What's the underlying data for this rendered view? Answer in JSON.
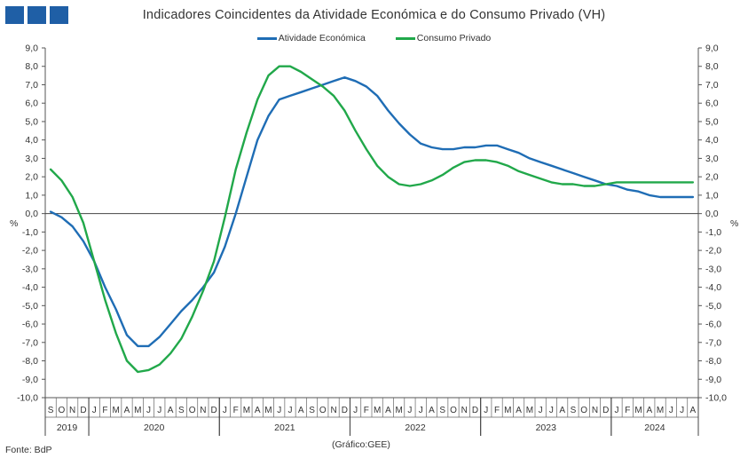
{
  "header": {
    "title": "Indicadores Coincidentes da Atividade Económica e do Consumo Privado (VH)",
    "logo_color": "#1f5fa6"
  },
  "footer": {
    "source": "Fonte: BdP",
    "note": "(Gráfico:GEE)"
  },
  "chart_data": {
    "type": "line",
    "title": "Indicadores Coincidentes da Atividade Económica e do Consumo Privado (VH)",
    "ylabel_left": "%",
    "ylabel_right": "%",
    "ylim": [
      -10,
      9
    ],
    "y_ticks": [
      "9,0",
      "8,0",
      "7,0",
      "6,0",
      "5,0",
      "4,0",
      "3,0",
      "2,0",
      "1,0",
      "0,0",
      "-1,0",
      "-2,0",
      "-3,0",
      "-4,0",
      "-5,0",
      "-6,0",
      "-7,0",
      "-8,0",
      "-9,0",
      "-10,0"
    ],
    "y_tick_values": [
      9,
      8,
      7,
      6,
      5,
      4,
      3,
      2,
      1,
      0,
      -1,
      -2,
      -3,
      -4,
      -5,
      -6,
      -7,
      -8,
      -9,
      -10
    ],
    "grid": false,
    "legend_position": "top-center",
    "month_labels": [
      "S",
      "O",
      "N",
      "D",
      "J",
      "F",
      "M",
      "A",
      "M",
      "J",
      "J",
      "A",
      "S",
      "O",
      "N",
      "D",
      "J",
      "F",
      "M",
      "A",
      "M",
      "J",
      "J",
      "A",
      "S",
      "O",
      "N",
      "D",
      "J",
      "F",
      "M",
      "A",
      "M",
      "J",
      "J",
      "A",
      "S",
      "O",
      "N",
      "D",
      "J",
      "F",
      "M",
      "A",
      "M",
      "J",
      "J",
      "A",
      "S",
      "O",
      "N",
      "D",
      "J",
      "F",
      "M",
      "A",
      "M",
      "J",
      "J",
      "A"
    ],
    "years": [
      {
        "label": "2019",
        "start": 0,
        "count": 4
      },
      {
        "label": "2020",
        "start": 4,
        "count": 12
      },
      {
        "label": "2021",
        "start": 16,
        "count": 12
      },
      {
        "label": "2022",
        "start": 28,
        "count": 12
      },
      {
        "label": "2023",
        "start": 40,
        "count": 12
      },
      {
        "label": "2024",
        "start": 52,
        "count": 8
      }
    ],
    "series": [
      {
        "name": "Atividade Económica",
        "color": "#1f6db5",
        "values": [
          0.1,
          -0.2,
          -0.7,
          -1.5,
          -2.6,
          -4.0,
          -5.2,
          -6.6,
          -7.2,
          -7.2,
          -6.7,
          -6.0,
          -5.3,
          -4.7,
          -4.0,
          -3.2,
          -1.8,
          0.0,
          2.0,
          4.0,
          5.3,
          6.2,
          6.4,
          6.6,
          6.8,
          7.0,
          7.2,
          7.4,
          7.2,
          6.9,
          6.4,
          5.6,
          4.9,
          4.3,
          3.8,
          3.6,
          3.5,
          3.5,
          3.6,
          3.6,
          3.7,
          3.7,
          3.5,
          3.3,
          3.0,
          2.8,
          2.6,
          2.4,
          2.2,
          2.0,
          1.8,
          1.6,
          1.5,
          1.3,
          1.2,
          1.0,
          0.9,
          0.9,
          0.9,
          0.9
        ]
      },
      {
        "name": "Consumo Privado",
        "color": "#21a84a",
        "values": [
          2.4,
          1.8,
          0.9,
          -0.5,
          -2.6,
          -4.7,
          -6.5,
          -8.0,
          -8.6,
          -8.5,
          -8.2,
          -7.6,
          -6.8,
          -5.6,
          -4.2,
          -2.6,
          -0.2,
          2.4,
          4.4,
          6.2,
          7.5,
          8.0,
          8.0,
          7.7,
          7.3,
          6.9,
          6.4,
          5.6,
          4.5,
          3.5,
          2.6,
          2.0,
          1.6,
          1.5,
          1.6,
          1.8,
          2.1,
          2.5,
          2.8,
          2.9,
          2.9,
          2.8,
          2.6,
          2.3,
          2.1,
          1.9,
          1.7,
          1.6,
          1.6,
          1.5,
          1.5,
          1.6,
          1.7,
          1.7,
          1.7,
          1.7,
          1.7,
          1.7,
          1.7,
          1.7
        ]
      }
    ]
  }
}
